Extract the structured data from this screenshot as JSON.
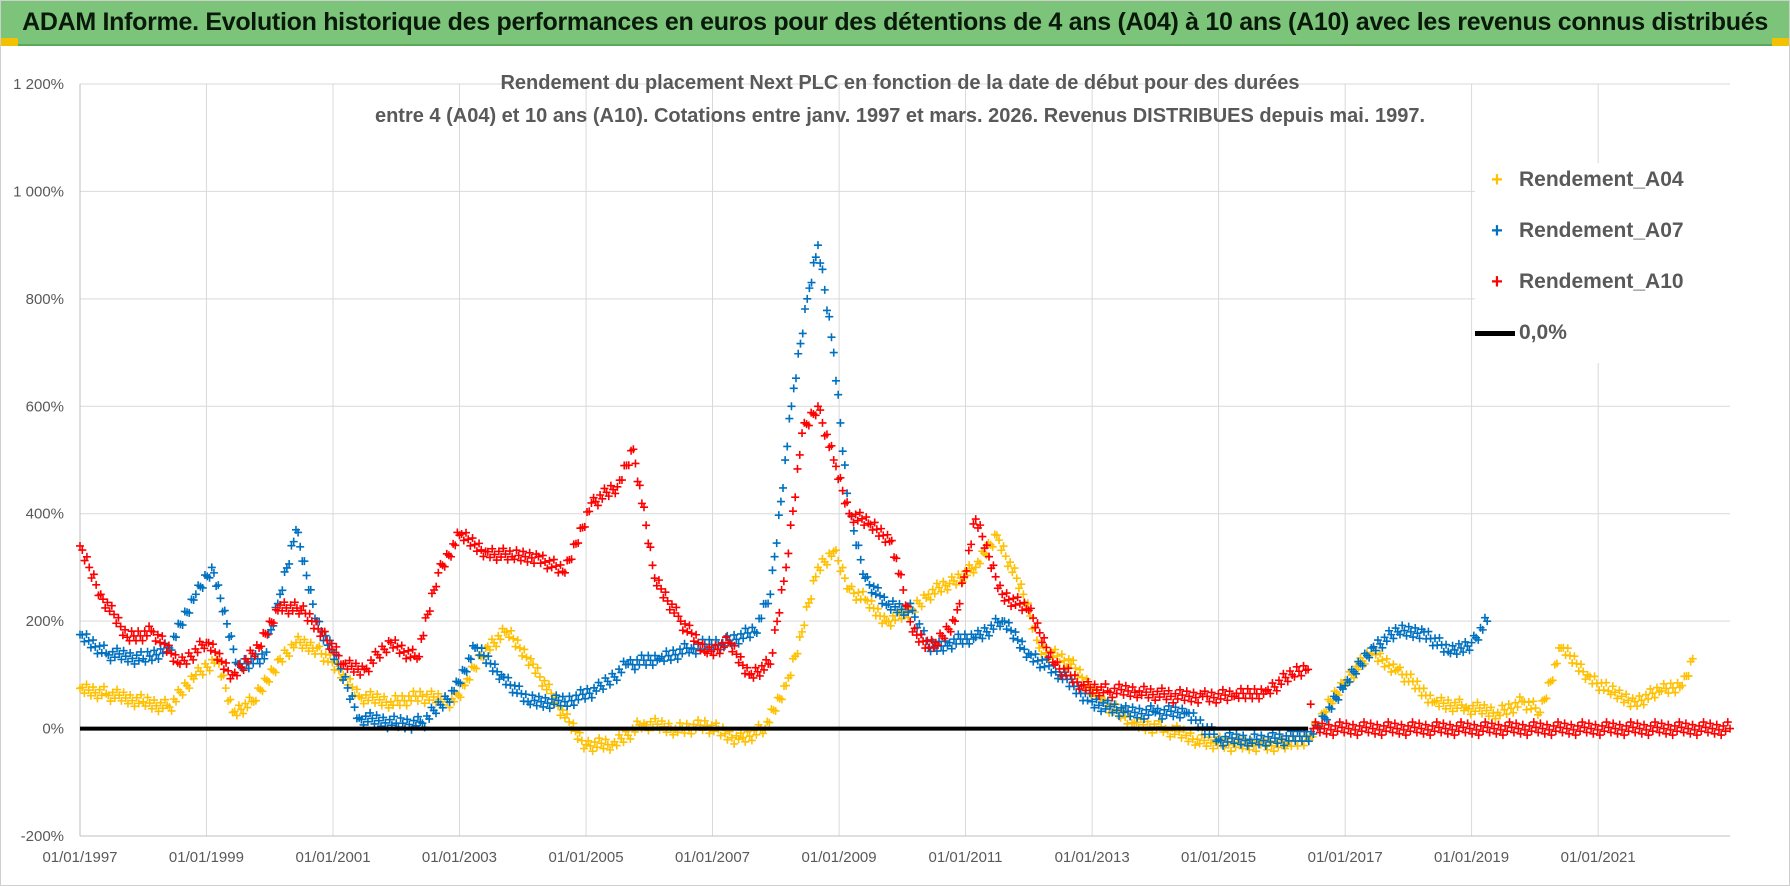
{
  "banner": {
    "title": "ADAM Informe. Evolution historique des performances en euros pour des détentions de 4 ans (A04) à 10 ans (A10) avec les revenus connus distribués"
  },
  "colors": {
    "banner": "#7cc47a",
    "a04": "#ffc000",
    "a07": "#0070c0",
    "a10": "#ff0000",
    "zero": "#000000"
  },
  "chart_data": {
    "type": "scatter",
    "title_line1": "Rendement du placement Next PLC en fonction de la date de début pour des durées",
    "title_line2": "entre 4 (A04) et 10 ans (A10).  Cotations entre janv. 1997 et mars. 2026.  Revenus DISTRIBUES depuis mai. 1997.",
    "xlabel": "",
    "ylabel": "",
    "xlim": [
      "1997-01-01",
      "2023-02-01"
    ],
    "ylim": [
      -200,
      1200
    ],
    "y_ticks": [
      -200,
      0,
      200,
      400,
      600,
      800,
      1000,
      1200
    ],
    "y_tick_labels": [
      "-200%",
      "0%",
      "200%",
      "400%",
      "600%",
      "800%",
      "1 000%",
      "1 200%"
    ],
    "x_tick_labels": [
      "01/01/1997",
      "01/01/1999",
      "01/01/2001",
      "01/01/2003",
      "01/01/2005",
      "01/01/2007",
      "01/01/2009",
      "01/01/2011",
      "01/01/2013",
      "01/01/2015",
      "01/01/2017",
      "01/01/2019",
      "01/01/2021"
    ],
    "grid": true,
    "legend_position": "top-right",
    "series": [
      {
        "name": "Rendement_A04",
        "marker": "+",
        "x": [
          "1997-01-01",
          "1997-06-01",
          "1998-01-01",
          "1998-06-01",
          "1998-11-01",
          "1999-03-01",
          "1999-06-01",
          "1999-10-01",
          "2000-03-01",
          "2000-06-01",
          "2000-10-01",
          "2001-03-01",
          "2001-06-01",
          "2001-12-01",
          "2002-06-01",
          "2002-12-01",
          "2003-02-01",
          "2003-06-01",
          "2003-10-01",
          "2004-03-01",
          "2004-09-01",
          "2005-01-01",
          "2005-06-01",
          "2005-12-01",
          "2006-06-01",
          "2006-12-01",
          "2007-06-01",
          "2007-11-01",
          "2008-03-01",
          "2008-06-01",
          "2008-09-01",
          "2008-12-01",
          "2009-03-01",
          "2009-06-01",
          "2009-10-01",
          "2010-03-01",
          "2010-06-01",
          "2010-10-01",
          "2011-03-01",
          "2011-07-01",
          "2011-12-01",
          "2012-03-01",
          "2012-09-01",
          "2013-03-01",
          "2013-09-01",
          "2014-03-01",
          "2014-09-01",
          "2015-03-01",
          "2015-09-01",
          "2016-02-01",
          "2016-06-01",
          "2016-09-01",
          "2017-01-01",
          "2017-06-01",
          "2017-11-01",
          "2018-06-01",
          "2018-12-01",
          "2019-06-01",
          "2019-11-01",
          "2020-02-01",
          "2020-06-01",
          "2020-11-01",
          "2021-03-01",
          "2021-08-01",
          "2022-01-01",
          "2022-05-01",
          "2022-07-01"
        ],
        "y": [
          75,
          65,
          50,
          40,
          100,
          130,
          30,
          50,
          130,
          160,
          150,
          100,
          60,
          50,
          60,
          50,
          80,
          150,
          180,
          120,
          20,
          -30,
          -30,
          10,
          0,
          5,
          -20,
          0,
          80,
          180,
          300,
          330,
          260,
          240,
          200,
          220,
          250,
          270,
          300,
          360,
          250,
          150,
          120,
          50,
          10,
          0,
          -20,
          -30,
          -30,
          -30,
          -20,
          30,
          90,
          140,
          110,
          50,
          40,
          30,
          50,
          30,
          150,
          100,
          70,
          50,
          70,
          80,
          130
        ]
      },
      {
        "name": "Rendement_A07",
        "marker": "+",
        "x": [
          "1997-01-01",
          "1997-06-01",
          "1998-01-01",
          "1998-06-01",
          "1998-11-01",
          "1999-02-01",
          "1999-07-01",
          "1999-12-01",
          "2000-03-01",
          "2000-06-01",
          "2000-10-01",
          "2001-02-01",
          "2001-06-01",
          "2002-01-01",
          "2002-06-01",
          "2002-12-01",
          "2003-04-01",
          "2003-09-01",
          "2004-02-01",
          "2004-09-01",
          "2005-03-01",
          "2005-09-01",
          "2006-03-01",
          "2006-09-01",
          "2007-03-01",
          "2007-09-01",
          "2007-12-01",
          "2008-04-01",
          "2008-07-01",
          "2008-09-01",
          "2008-12-01",
          "2009-03-01",
          "2009-06-01",
          "2009-10-01",
          "2010-03-01",
          "2010-06-01",
          "2010-10-01",
          "2011-03-01",
          "2011-08-01",
          "2012-01-01",
          "2012-07-01",
          "2013-01-01",
          "2013-07-01",
          "2014-01-01",
          "2014-07-01",
          "2015-01-01",
          "2015-07-01",
          "2016-01-01",
          "2016-07-01",
          "2017-01-01",
          "2017-06-01",
          "2017-11-01",
          "2018-04-01",
          "2018-09-01",
          "2019-01-01",
          "2019-04-01"
        ],
        "y": [
          175,
          140,
          130,
          150,
          250,
          300,
          120,
          130,
          250,
          370,
          200,
          120,
          20,
          10,
          10,
          70,
          150,
          100,
          50,
          50,
          70,
          120,
          130,
          150,
          160,
          180,
          250,
          600,
          800,
          900,
          700,
          400,
          280,
          230,
          220,
          150,
          160,
          170,
          200,
          140,
          100,
          50,
          30,
          30,
          30,
          -20,
          -20,
          -20,
          -10,
          80,
          150,
          180,
          180,
          140,
          160,
          200
        ]
      },
      {
        "name": "Rendement_A10",
        "marker": "+",
        "x": [
          "1997-01-01",
          "1997-05-01",
          "1997-10-01",
          "1998-03-01",
          "1998-08-01",
          "1999-01-01",
          "1999-06-01",
          "1999-11-01",
          "2000-03-01",
          "2000-07-01",
          "2000-11-01",
          "2001-03-01",
          "2001-07-01",
          "2001-12-01",
          "2002-05-01",
          "2002-09-01",
          "2003-01-01",
          "2003-06-01",
          "2003-11-01",
          "2004-04-01",
          "2004-09-01",
          "2005-02-01",
          "2005-07-01",
          "2005-10-01",
          "2006-02-01",
          "2006-07-01",
          "2006-12-01",
          "2007-04-01",
          "2007-08-01",
          "2007-12-01",
          "2008-03-01",
          "2008-06-01",
          "2008-09-01",
          "2008-12-01",
          "2009-03-01",
          "2009-07-01",
          "2009-11-01",
          "2010-03-01",
          "2010-07-01",
          "2010-11-01",
          "2011-03-01",
          "2011-08-01",
          "2012-01-01",
          "2012-06-01",
          "2012-11-01",
          "2013-04-01",
          "2013-10-01",
          "2014-04-01",
          "2014-10-01",
          "2015-04-01",
          "2015-10-01",
          "2016-03-01",
          "2016-06-01",
          "2016-07-01",
          "2023-02-01"
        ],
        "y": [
          340,
          250,
          170,
          180,
          120,
          160,
          100,
          150,
          230,
          220,
          180,
          120,
          110,
          160,
          130,
          290,
          360,
          330,
          320,
          320,
          290,
          420,
          450,
          520,
          280,
          200,
          140,
          160,
          100,
          120,
          300,
          550,
          600,
          500,
          400,
          380,
          350,
          180,
          150,
          200,
          390,
          250,
          220,
          120,
          80,
          70,
          70,
          60,
          60,
          60,
          70,
          100,
          110,
          0,
          0
        ]
      },
      {
        "name": "0,0%",
        "type": "line",
        "x": [
          "1997-01-01",
          "2016-06-01"
        ],
        "y": [
          0,
          0
        ]
      }
    ]
  }
}
